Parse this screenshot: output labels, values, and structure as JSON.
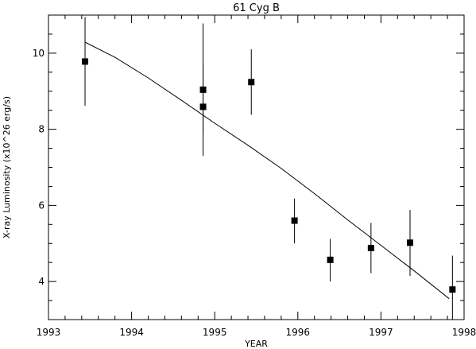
{
  "chart_data": {
    "type": "scatter",
    "title": "61 Cyg B",
    "xlabel": "YEAR",
    "ylabel": "X-ray Luminosity (x10^26 erg/s)",
    "xlim": [
      1993,
      1998
    ],
    "ylim": [
      3,
      11
    ],
    "xticks": [
      1993,
      1994,
      1995,
      1996,
      1997,
      1998
    ],
    "yticks": [
      4,
      6,
      8,
      10
    ],
    "series": [
      {
        "points": [
          {
            "x": 1993.44,
            "y": 9.78,
            "ylo": 8.62,
            "yhi": 10.95
          },
          {
            "x": 1994.86,
            "y": 9.04,
            "ylo": 7.88,
            "yhi": 10.78
          },
          {
            "x": 1994.86,
            "y": 8.59,
            "ylo": 7.3,
            "yhi": 9.7
          },
          {
            "x": 1995.44,
            "y": 9.24,
            "ylo": 8.38,
            "yhi": 10.1
          },
          {
            "x": 1995.96,
            "y": 5.6,
            "ylo": 5.0,
            "yhi": 6.18
          },
          {
            "x": 1996.39,
            "y": 4.57,
            "ylo": 4.0,
            "yhi": 5.12
          },
          {
            "x": 1996.88,
            "y": 4.88,
            "ylo": 4.22,
            "yhi": 5.54
          },
          {
            "x": 1997.35,
            "y": 5.02,
            "ylo": 4.15,
            "yhi": 5.88
          },
          {
            "x": 1997.86,
            "y": 3.79,
            "ylo": 3.0,
            "yhi": 4.68
          }
        ]
      }
    ],
    "fit_line": {
      "x": [
        1993.44,
        1993.8,
        1994.2,
        1994.6,
        1995.0,
        1995.4,
        1995.8,
        1996.2,
        1996.6,
        1997.0,
        1997.4,
        1997.82
      ],
      "y": [
        10.29,
        9.89,
        9.35,
        8.76,
        8.16,
        7.58,
        6.97,
        6.31,
        5.62,
        4.95,
        4.28,
        3.55
      ]
    }
  }
}
